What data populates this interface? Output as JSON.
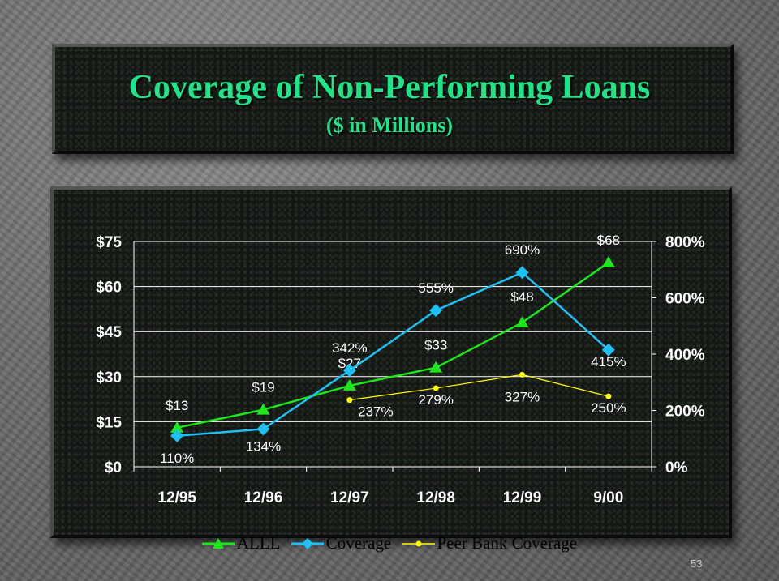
{
  "title": "Coverage of Non-Performing Loans",
  "subtitle": "($ in Millions)",
  "page_number": "53",
  "colors": {
    "title": "#1de58a",
    "alll": "#1de61d",
    "coverage": "#1ec1f5",
    "peer": "#ffff00"
  },
  "chart_data": {
    "type": "line",
    "categories": [
      "12/95",
      "12/96",
      "12/97",
      "12/98",
      "12/99",
      "9/00"
    ],
    "y_left": {
      "ticks": [
        "$0",
        "$15",
        "$30",
        "$45",
        "$60",
        "$75"
      ],
      "range": [
        0,
        75
      ]
    },
    "y_right": {
      "ticks": [
        "0%",
        "200%",
        "400%",
        "600%",
        "800%"
      ],
      "range": [
        0,
        800
      ]
    },
    "grid": true,
    "legend_position": "bottom",
    "series": [
      {
        "name": "ALLL",
        "axis": "left",
        "marker": "triangle",
        "color": "#1de61d",
        "values": [
          13,
          19,
          27,
          33,
          48,
          68
        ],
        "labels": [
          "$13",
          "$19",
          "$27",
          "$33",
          "$48",
          "$68"
        ]
      },
      {
        "name": "Coverage",
        "axis": "right",
        "marker": "diamond",
        "color": "#1ec1f5",
        "values": [
          110,
          134,
          342,
          555,
          690,
          415
        ],
        "labels": [
          "110%",
          "134%",
          "342%",
          "555%",
          "690%",
          "415%"
        ]
      },
      {
        "name": "Peer Bank Coverage",
        "axis": "right",
        "marker": "circle",
        "color": "#ffff00",
        "values": [
          null,
          null,
          237,
          279,
          327,
          250
        ],
        "labels": [
          "",
          "",
          "237%",
          "279%",
          "327%",
          "250%"
        ]
      }
    ]
  }
}
